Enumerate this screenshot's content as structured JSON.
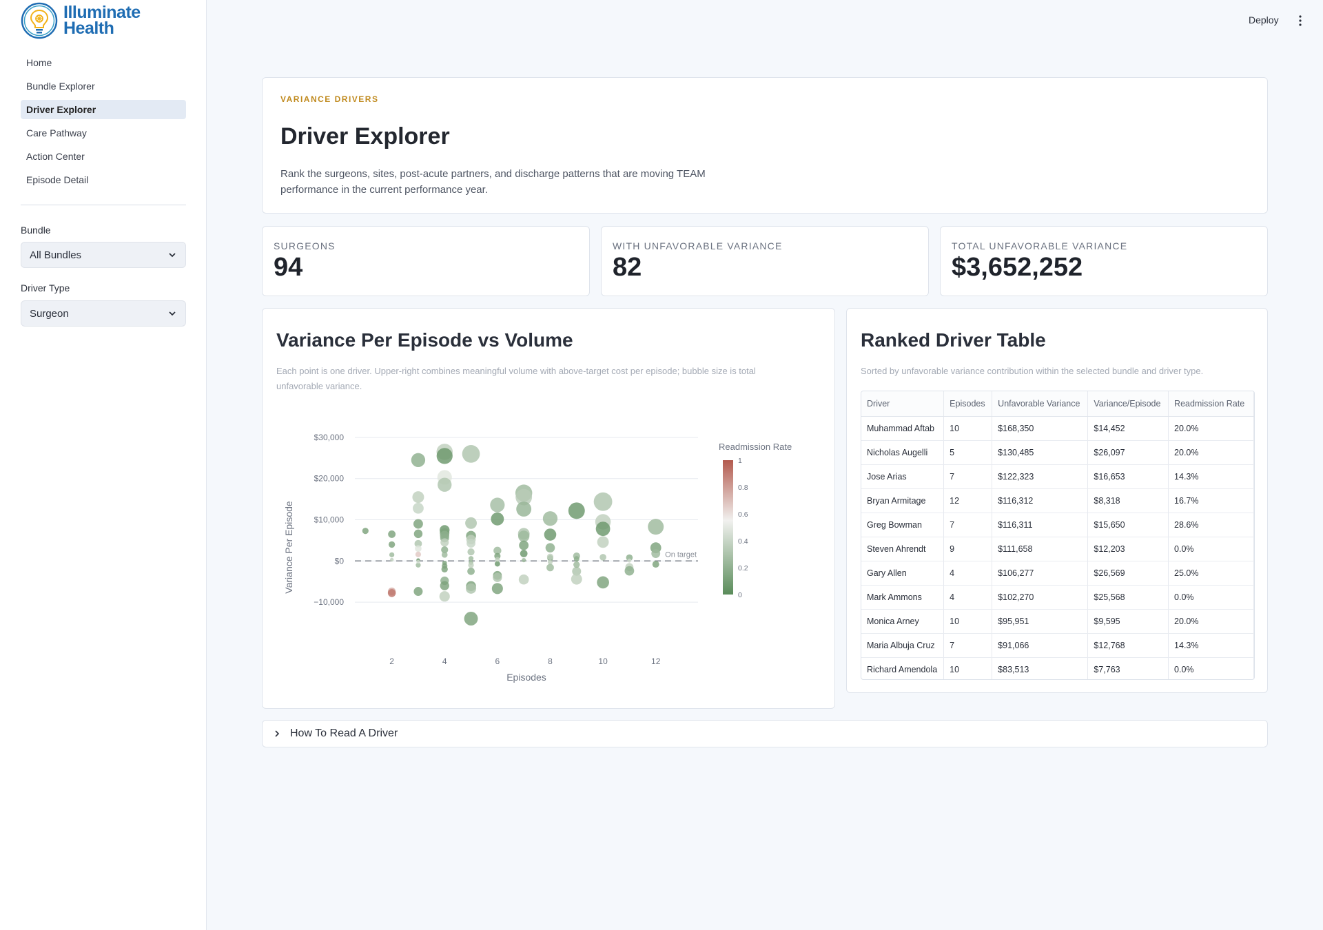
{
  "brand": {
    "line1": "Illuminate",
    "line2": "Health"
  },
  "nav": [
    {
      "label": "Home",
      "active": false
    },
    {
      "label": "Bundle Explorer",
      "active": false
    },
    {
      "label": "Driver Explorer",
      "active": true
    },
    {
      "label": "Care Pathway",
      "active": false
    },
    {
      "label": "Action Center",
      "active": false
    },
    {
      "label": "Episode Detail",
      "active": false
    }
  ],
  "filters": {
    "bundle_label": "Bundle",
    "bundle_value": "All Bundles",
    "driver_type_label": "Driver Type",
    "driver_type_value": "Surgeon"
  },
  "topbar": {
    "deploy_label": "Deploy"
  },
  "header": {
    "eyebrow": "VARIANCE DRIVERS",
    "title": "Driver Explorer",
    "description": "Rank the surgeons, sites, post-acute partners, and discharge patterns that are moving TEAM performance in the current performance year."
  },
  "kpis": [
    {
      "label": "SURGEONS",
      "value": "94"
    },
    {
      "label": "WITH UNFAVORABLE VARIANCE",
      "value": "82"
    },
    {
      "label": "TOTAL UNFAVORABLE VARIANCE",
      "value": "$3,652,252"
    }
  ],
  "chart_panel": {
    "title": "Variance Per Episode vs Volume",
    "subtitle_line1": "Each point is one driver. Upper-right combines meaningful volume with above-target cost per episode; bubble size is total",
    "subtitle_line2": "unfavorable variance."
  },
  "chart_data": {
    "type": "scatter",
    "xlabel": "Episodes",
    "ylabel": "Variance Per Episode",
    "x_ticks": [
      2,
      4,
      6,
      8,
      10,
      12
    ],
    "y_ticks": [
      30000,
      20000,
      10000,
      0,
      -10000
    ],
    "y_tick_labels": [
      "$30,000",
      "$20,000",
      "$10,000",
      "$0",
      "−10,000"
    ],
    "xlim": [
      0.6,
      13.6
    ],
    "ylim": [
      -14000,
      32000
    ],
    "target_line": {
      "y": 0,
      "label": "On target"
    },
    "colorbar": {
      "title": "Readmission Rate",
      "ticks": [
        1,
        0.8,
        0.6,
        0.4,
        0.2,
        0
      ],
      "low_color": "#5a8c5a",
      "mid_color": "#f1f1ef",
      "high_color": "#b35a4e"
    },
    "points": [
      {
        "x": 3,
        "y": 24500,
        "r": 0.15
      },
      {
        "x": 4,
        "y": 26500,
        "r": 0.3
      },
      {
        "x": 4,
        "y": 25500,
        "r": 0.05
      },
      {
        "x": 5,
        "y": 26000,
        "r": 0.25
      },
      {
        "x": 4,
        "y": 20300,
        "r": 0.4
      },
      {
        "x": 4,
        "y": 18500,
        "r": 0.25
      },
      {
        "x": 3,
        "y": 15500,
        "r": 0.3
      },
      {
        "x": 3,
        "y": 12800,
        "r": 0.32
      },
      {
        "x": 7,
        "y": 16500,
        "r": 0.2
      },
      {
        "x": 7,
        "y": 15500,
        "r": 0.28
      },
      {
        "x": 10,
        "y": 14400,
        "r": 0.25
      },
      {
        "x": 6,
        "y": 13600,
        "r": 0.22
      },
      {
        "x": 7,
        "y": 12600,
        "r": 0.18
      },
      {
        "x": 9,
        "y": 12200,
        "r": 0.05
      },
      {
        "x": 12,
        "y": 8300,
        "r": 0.2
      },
      {
        "x": 8,
        "y": 10300,
        "r": 0.2
      },
      {
        "x": 6,
        "y": 10200,
        "r": 0.05
      },
      {
        "x": 10,
        "y": 9500,
        "r": 0.3
      },
      {
        "x": 10,
        "y": 7800,
        "r": 0.05
      },
      {
        "x": 5,
        "y": 9200,
        "r": 0.25
      },
      {
        "x": 3,
        "y": 9000,
        "r": 0.1
      },
      {
        "x": 1,
        "y": 7300,
        "r": 0.1
      },
      {
        "x": 4,
        "y": 7500,
        "r": 0.05
      },
      {
        "x": 4,
        "y": 6800,
        "r": 0.1
      },
      {
        "x": 4,
        "y": 6200,
        "r": 0.15
      },
      {
        "x": 2,
        "y": 6500,
        "r": 0.1
      },
      {
        "x": 3,
        "y": 6600,
        "r": 0.1
      },
      {
        "x": 5,
        "y": 6100,
        "r": 0.1
      },
      {
        "x": 8,
        "y": 6400,
        "r": 0.05
      },
      {
        "x": 7,
        "y": 6600,
        "r": 0.25
      },
      {
        "x": 7,
        "y": 6000,
        "r": 0.2
      },
      {
        "x": 4,
        "y": 5600,
        "r": 0.15
      },
      {
        "x": 5,
        "y": 5200,
        "r": 0.3
      },
      {
        "x": 10,
        "y": 4600,
        "r": 0.3
      },
      {
        "x": 3,
        "y": 4200,
        "r": 0.25
      },
      {
        "x": 4,
        "y": 4500,
        "r": 0.3
      },
      {
        "x": 2,
        "y": 4000,
        "r": 0.1
      },
      {
        "x": 5,
        "y": 4300,
        "r": 0.32
      },
      {
        "x": 7,
        "y": 3800,
        "r": 0.1
      },
      {
        "x": 8,
        "y": 3200,
        "r": 0.15
      },
      {
        "x": 12,
        "y": 3200,
        "r": 0.1
      },
      {
        "x": 3,
        "y": 3000,
        "r": 0.4
      },
      {
        "x": 4,
        "y": 2700,
        "r": 0.15
      },
      {
        "x": 6,
        "y": 2500,
        "r": 0.2
      },
      {
        "x": 5,
        "y": 2200,
        "r": 0.25
      },
      {
        "x": 7,
        "y": 1800,
        "r": 0.05
      },
      {
        "x": 12,
        "y": 1800,
        "r": 0.2
      },
      {
        "x": 2,
        "y": 1500,
        "r": 0.2
      },
      {
        "x": 3,
        "y": 1600,
        "r": 0.6
      },
      {
        "x": 4,
        "y": 1500,
        "r": 0.2
      },
      {
        "x": 6,
        "y": 1200,
        "r": 0.1
      },
      {
        "x": 9,
        "y": 1200,
        "r": 0.2
      },
      {
        "x": 11,
        "y": 800,
        "r": 0.15
      },
      {
        "x": 10,
        "y": 900,
        "r": 0.25
      },
      {
        "x": 8,
        "y": 700,
        "r": 0.05
      },
      {
        "x": 9,
        "y": 500,
        "r": 0.15
      },
      {
        "x": 2,
        "y": 300,
        "r": 0.3
      },
      {
        "x": 3,
        "y": 200,
        "r": 0.05
      },
      {
        "x": 7,
        "y": 200,
        "r": 0.2
      },
      {
        "x": 4,
        "y": -500,
        "r": 0.1
      },
      {
        "x": 5,
        "y": -400,
        "r": 0.2
      },
      {
        "x": 8,
        "y": -300,
        "r": 0.3
      },
      {
        "x": 6,
        "y": -700,
        "r": 0.05
      },
      {
        "x": 11,
        "y": -1500,
        "r": 0.3
      },
      {
        "x": 4,
        "y": -1200,
        "r": 0.1
      },
      {
        "x": 12,
        "y": -800,
        "r": 0.1
      },
      {
        "x": 4,
        "y": -2000,
        "r": 0.1
      },
      {
        "x": 5,
        "y": -2500,
        "r": 0.15
      },
      {
        "x": 11,
        "y": -2400,
        "r": 0.15
      },
      {
        "x": 5,
        "y": -1000,
        "r": 0.3
      },
      {
        "x": 3,
        "y": -1000,
        "r": 0.2
      },
      {
        "x": 8,
        "y": -1600,
        "r": 0.2
      },
      {
        "x": 9,
        "y": -2500,
        "r": 0.25
      },
      {
        "x": 6,
        "y": -3500,
        "r": 0.1
      },
      {
        "x": 6,
        "y": -4000,
        "r": 0.25
      },
      {
        "x": 7,
        "y": -4500,
        "r": 0.3
      },
      {
        "x": 4,
        "y": -4800,
        "r": 0.15
      },
      {
        "x": 9,
        "y": -4400,
        "r": 0.3
      },
      {
        "x": 10,
        "y": -5200,
        "r": 0.1
      },
      {
        "x": 4,
        "y": -6000,
        "r": 0.1
      },
      {
        "x": 5,
        "y": -6100,
        "r": 0.1
      },
      {
        "x": 5,
        "y": -6700,
        "r": 0.25
      },
      {
        "x": 6,
        "y": -6700,
        "r": 0.1
      },
      {
        "x": 3,
        "y": -7400,
        "r": 0.1
      },
      {
        "x": 2,
        "y": -7400,
        "r": 0.7
      },
      {
        "x": 2,
        "y": -7800,
        "r": 0.9
      },
      {
        "x": 4,
        "y": -8600,
        "r": 0.3
      },
      {
        "x": 5,
        "y": -14000,
        "r": 0.1
      },
      {
        "x": 3,
        "y": -200,
        "r": 0.35
      },
      {
        "x": 6,
        "y": 400,
        "r": 0.3
      },
      {
        "x": 11,
        "y": 100,
        "r": 0.35
      },
      {
        "x": 5,
        "y": 600,
        "r": 0.2
      },
      {
        "x": 8,
        "y": 1000,
        "r": 0.3
      },
      {
        "x": 9,
        "y": -900,
        "r": 0.2
      }
    ],
    "sizes": [
      24500,
      26500,
      25500,
      26000,
      20300,
      18500,
      15500,
      12800,
      16500,
      15500,
      14400,
      13600,
      12600,
      12200,
      8300,
      10300,
      10200,
      9500,
      7800,
      9200,
      9000,
      7300,
      7500,
      6800,
      6200,
      6500,
      6600,
      6100,
      6400,
      6600,
      6000,
      5600,
      5200,
      4600,
      4200,
      4500,
      4000,
      4300,
      3800,
      3200,
      3200,
      3000,
      2700,
      2500,
      2200,
      1800,
      1800,
      1500,
      1600,
      1500,
      1200,
      1200,
      800,
      900,
      700,
      500,
      300,
      200,
      200,
      500,
      400,
      300,
      700,
      1500,
      1200,
      800,
      2000,
      2500,
      2400,
      1000,
      1000,
      1600,
      2500,
      3500,
      4000,
      4500,
      4800,
      4400,
      5200,
      6000,
      6100,
      6700,
      6700,
      7400,
      7400,
      7800,
      8600,
      14000,
      200,
      400,
      100,
      600,
      1000,
      900
    ]
  },
  "table_panel": {
    "title": "Ranked Driver Table",
    "subtitle": "Sorted by unfavorable variance contribution within the selected bundle and driver type.",
    "columns": [
      "Driver",
      "Episodes",
      "Unfavorable Variance",
      "Variance/Episode",
      "Readmission Rate"
    ],
    "rows": [
      [
        "Muhammad Aftab",
        "10",
        "$168,350",
        "$14,452",
        "20.0%"
      ],
      [
        "Nicholas Augelli",
        "5",
        "$130,485",
        "$26,097",
        "20.0%"
      ],
      [
        "Jose Arias",
        "7",
        "$122,323",
        "$16,653",
        "14.3%"
      ],
      [
        "Bryan Armitage",
        "12",
        "$116,312",
        "$8,318",
        "16.7%"
      ],
      [
        "Greg Bowman",
        "7",
        "$116,311",
        "$15,650",
        "28.6%"
      ],
      [
        "Steven Ahrendt",
        "9",
        "$111,658",
        "$12,203",
        "0.0%"
      ],
      [
        "Gary Allen",
        "4",
        "$106,277",
        "$26,569",
        "25.0%"
      ],
      [
        "Mark Ammons",
        "4",
        "$102,270",
        "$25,568",
        "0.0%"
      ],
      [
        "Monica Arney",
        "10",
        "$95,951",
        "$9,595",
        "20.0%"
      ],
      [
        "Maria Albuja Cruz",
        "7",
        "$91,066",
        "$12,768",
        "14.3%"
      ],
      [
        "Richard Amendola",
        "10",
        "$83,513",
        "$7,763",
        "0.0%"
      ]
    ]
  },
  "expander": {
    "label": "How To Read A Driver"
  }
}
